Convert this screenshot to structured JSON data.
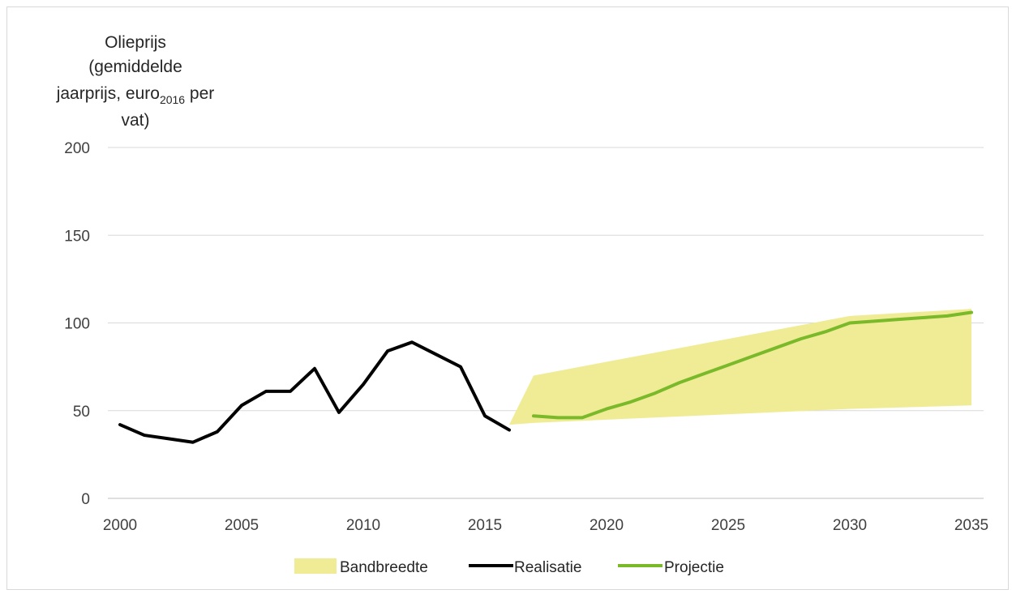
{
  "chart_data": {
    "type": "line",
    "ylabel": {
      "line1": "Olieprijs",
      "line2": "(gemiddelde",
      "line3_pre": "jaarprijs, euro",
      "line3_sub": "2016",
      "line3_post": " per",
      "line4": "vat)"
    },
    "xlim": [
      2000,
      2035
    ],
    "ylim": [
      0,
      200
    ],
    "x_ticks": [
      2000,
      2005,
      2010,
      2015,
      2020,
      2025,
      2030,
      2035
    ],
    "y_ticks": [
      0,
      50,
      100,
      150,
      200
    ],
    "grid": true,
    "legend_position": "bottom",
    "band": {
      "name": "Bandbreedte",
      "color": "#f0ec96",
      "x": [
        2016,
        2017,
        2030,
        2035
      ],
      "lower": [
        42,
        43,
        51,
        53
      ],
      "upper": [
        42,
        70,
        104,
        108
      ]
    },
    "series": [
      {
        "name": "Realisatie",
        "color": "#000000",
        "x": [
          2000,
          2001,
          2002,
          2003,
          2004,
          2005,
          2006,
          2007,
          2008,
          2009,
          2010,
          2011,
          2012,
          2013,
          2014,
          2015,
          2016
        ],
        "values": [
          42,
          36,
          34,
          32,
          38,
          53,
          61,
          61,
          74,
          49,
          65,
          84,
          89,
          82,
          75,
          47,
          39
        ]
      },
      {
        "name": "Projectie",
        "color": "#7ab929",
        "x": [
          2017,
          2018,
          2019,
          2020,
          2021,
          2022,
          2023,
          2024,
          2025,
          2026,
          2027,
          2028,
          2029,
          2030,
          2031,
          2032,
          2033,
          2034,
          2035
        ],
        "values": [
          47,
          46,
          46,
          51,
          55,
          60,
          66,
          71,
          76,
          81,
          86,
          91,
          95,
          100,
          101,
          102,
          103,
          104,
          106
        ]
      }
    ]
  }
}
